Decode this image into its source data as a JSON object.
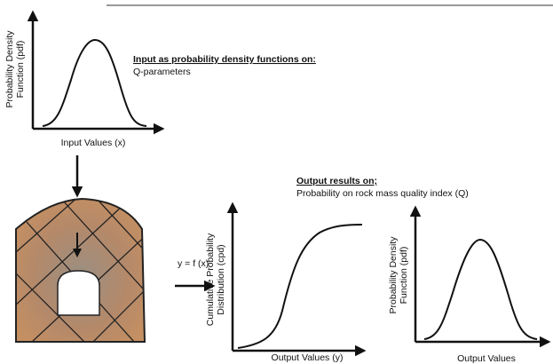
{
  "input_panel": {
    "y_label": [
      "Probability Density",
      "Function (pdf)"
    ],
    "x_label": "Input Values (x)",
    "heading": "Input as probability density functions on:",
    "subheading": "Q-parameters"
  },
  "model": {
    "label": "y = f (x)"
  },
  "output": {
    "heading": "Output results on;",
    "subheading": "Probability on rock mass quality index (Q)",
    "cdf_panel": {
      "y_label": [
        "Cumulative Probability",
        "Distribution (cpd)"
      ],
      "x_label": "Output Values (y)"
    },
    "pdf_panel": {
      "y_label": [
        "Probability Density",
        "Function (pdf)"
      ],
      "x_label": "Output Values"
    }
  }
}
